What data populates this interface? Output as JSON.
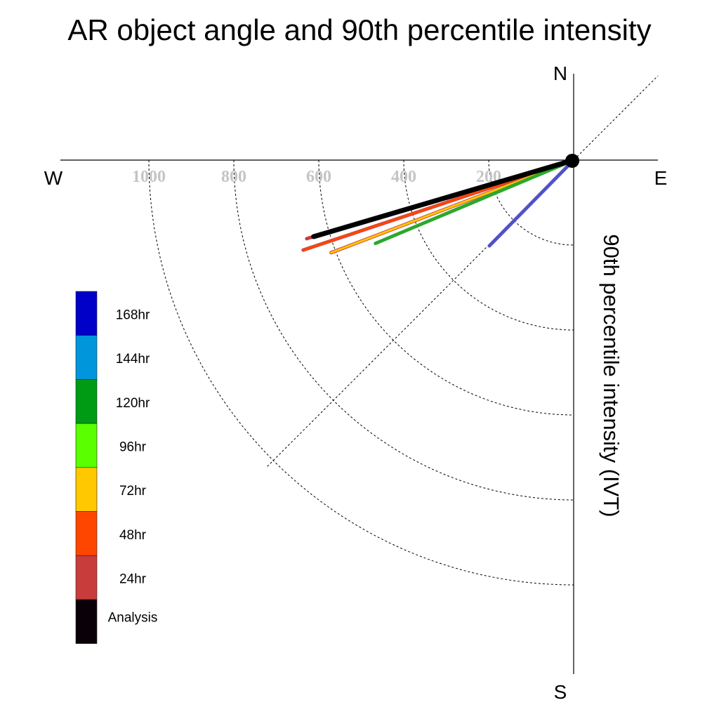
{
  "chart_data": {
    "type": "polar-vector",
    "title": "AR object angle and 90th percentile intensity",
    "ylabel": "90th percentile intensity (IVT)",
    "compass": {
      "north": "N",
      "south": "S",
      "east": "E",
      "west": "W"
    },
    "radial_ticks": [
      "200",
      "400",
      "600",
      "800",
      "1000"
    ],
    "radial_tick_values": [
      200,
      400,
      600,
      800,
      1000
    ],
    "radial_max": 1200,
    "grid": true,
    "legend_position": "left",
    "legend": [
      {
        "label": "168hr",
        "color": "#0000c8"
      },
      {
        "label": "144hr",
        "color": "#0096dc"
      },
      {
        "label": "120hr",
        "color": "#009b14"
      },
      {
        "label": "96hr",
        "color": "#5aff00"
      },
      {
        "label": "72hr",
        "color": "#ffc800"
      },
      {
        "label": "48hr",
        "color": "#ff4600"
      },
      {
        "label": "24hr",
        "color": "#c83c3c"
      },
      {
        "label": "Analysis",
        "color": "#0a0008"
      }
    ],
    "series": [
      {
        "name": "24hr",
        "angle_deg": 253.6,
        "intensity": 655,
        "color": "#c83c3c",
        "edge": "#c83c3c"
      },
      {
        "name": "48hr",
        "angle_deg": 251.6,
        "intensity": 671,
        "color": "#ff4600",
        "edge": "#c83c3c"
      },
      {
        "name": "72hr",
        "angle_deg": 249.1,
        "intensity": 611,
        "color": "#ffc800",
        "edge": "#c83c3c"
      },
      {
        "name": "120hr",
        "angle_deg": 247.2,
        "intensity": 506,
        "color": "#2aa82a",
        "edge": "#2aa82a"
      },
      {
        "name": "168hr",
        "angle_deg": 224.5,
        "intensity": 283,
        "color": "#5050c8",
        "edge": "#5050c8"
      },
      {
        "name": "Analysis",
        "angle_deg": 253.6,
        "intensity": 638,
        "color": "#000000",
        "edge": "#000000"
      }
    ]
  }
}
